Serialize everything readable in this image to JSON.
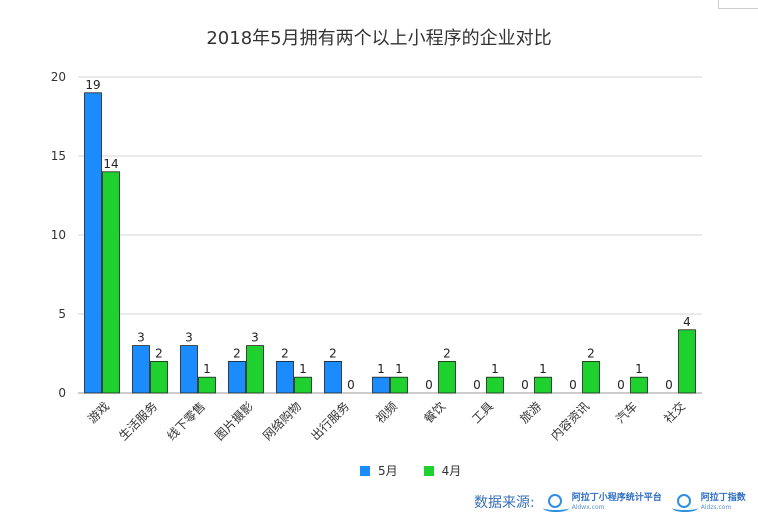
{
  "chart_data": {
    "type": "bar",
    "title": "2018年5月拥有两个以上小程序的企业对比",
    "categories": [
      "游戏",
      "生活服务",
      "线下零售",
      "图片摄影",
      "网络购物",
      "出行服务",
      "视频",
      "餐饮",
      "工具",
      "旅游",
      "内容资讯",
      "汽车",
      "社交"
    ],
    "series": [
      {
        "name": "5月",
        "color": "#1a8cff",
        "values": [
          19,
          3,
          3,
          2,
          2,
          2,
          1,
          0,
          0,
          0,
          0,
          0,
          0
        ]
      },
      {
        "name": "4月",
        "color": "#1fd12f",
        "values": [
          14,
          2,
          1,
          3,
          1,
          0,
          1,
          2,
          1,
          1,
          2,
          1,
          4
        ]
      }
    ],
    "ylim": [
      0,
      20
    ],
    "yticks": [
      0,
      5,
      10,
      15,
      20
    ],
    "grid": true,
    "legend": "bottom"
  },
  "source": {
    "label": "数据来源:",
    "logo1_name": "阿拉丁小程序统计平台",
    "logo1_url": "Aldwx.com",
    "logo2_name": "阿拉丁指数",
    "logo2_url": "Aldzs.com"
  }
}
